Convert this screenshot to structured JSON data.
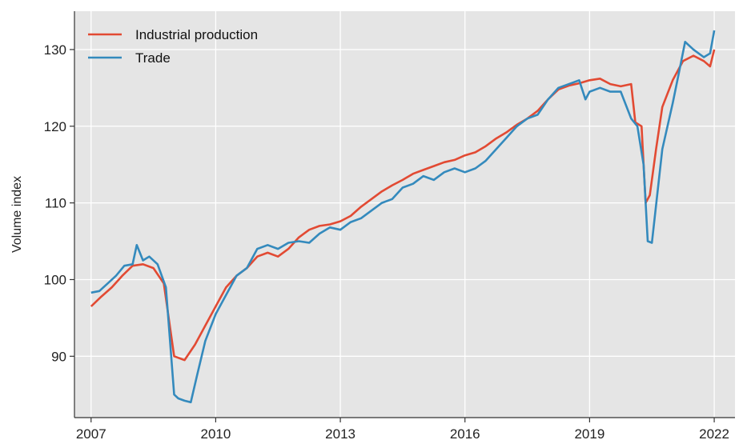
{
  "chart_data": {
    "type": "line",
    "title": "",
    "xlabel": "",
    "ylabel": "Volume index",
    "xlim": [
      2006.6,
      2022.5
    ],
    "ylim": [
      82,
      135
    ],
    "x_ticks": [
      2007,
      2010,
      2013,
      2016,
      2019,
      2022
    ],
    "y_ticks": [
      90,
      100,
      110,
      120,
      130
    ],
    "grid": true,
    "legend": "top-left",
    "series": [
      {
        "name": "Industrial production",
        "color": "#E24A33",
        "x": [
          2007.0,
          2007.25,
          2007.5,
          2007.75,
          2008.0,
          2008.25,
          2008.5,
          2008.75,
          2009.0,
          2009.25,
          2009.5,
          2009.75,
          2010.0,
          2010.25,
          2010.5,
          2010.75,
          2011.0,
          2011.25,
          2011.5,
          2011.75,
          2012.0,
          2012.25,
          2012.5,
          2012.75,
          2013.0,
          2013.25,
          2013.5,
          2013.75,
          2014.0,
          2014.25,
          2014.5,
          2014.75,
          2015.0,
          2015.25,
          2015.5,
          2015.75,
          2016.0,
          2016.25,
          2016.5,
          2016.75,
          2017.0,
          2017.25,
          2017.5,
          2017.75,
          2018.0,
          2018.25,
          2018.5,
          2018.75,
          2019.0,
          2019.25,
          2019.5,
          2019.75,
          2020.0,
          2020.1,
          2020.25,
          2020.35,
          2020.45,
          2020.6,
          2020.75,
          2021.0,
          2021.25,
          2021.5,
          2021.75,
          2021.9,
          2022.0
        ],
        "values": [
          96.5,
          97.8,
          99.0,
          100.5,
          101.8,
          102.0,
          101.5,
          99.5,
          90.0,
          89.5,
          91.5,
          94.0,
          96.5,
          99.0,
          100.5,
          101.5,
          103.0,
          103.5,
          103.0,
          104.0,
          105.5,
          106.5,
          107.0,
          107.2,
          107.6,
          108.3,
          109.5,
          110.5,
          111.5,
          112.3,
          113.0,
          113.8,
          114.3,
          114.8,
          115.3,
          115.6,
          116.2,
          116.6,
          117.4,
          118.4,
          119.2,
          120.2,
          121.0,
          122.0,
          123.5,
          124.8,
          125.3,
          125.6,
          126.0,
          126.2,
          125.5,
          125.2,
          125.5,
          120.5,
          120.0,
          110.0,
          111.0,
          117.0,
          122.5,
          126.0,
          128.5,
          129.2,
          128.5,
          127.8,
          130.0
        ]
      },
      {
        "name": "Trade",
        "color": "#348ABD",
        "x": [
          2007.0,
          2007.2,
          2007.4,
          2007.6,
          2007.8,
          2008.0,
          2008.1,
          2008.25,
          2008.4,
          2008.6,
          2008.8,
          2009.0,
          2009.1,
          2009.25,
          2009.4,
          2009.55,
          2009.75,
          2010.0,
          2010.25,
          2010.5,
          2010.75,
          2011.0,
          2011.25,
          2011.5,
          2011.75,
          2012.0,
          2012.25,
          2012.5,
          2012.75,
          2013.0,
          2013.25,
          2013.5,
          2013.75,
          2014.0,
          2014.25,
          2014.5,
          2014.75,
          2015.0,
          2015.25,
          2015.5,
          2015.75,
          2016.0,
          2016.25,
          2016.5,
          2016.75,
          2017.0,
          2017.25,
          2017.5,
          2017.75,
          2018.0,
          2018.25,
          2018.5,
          2018.75,
          2018.9,
          2019.0,
          2019.25,
          2019.5,
          2019.75,
          2020.0,
          2020.15,
          2020.3,
          2020.4,
          2020.5,
          2020.75,
          2021.0,
          2021.15,
          2021.3,
          2021.5,
          2021.75,
          2021.9,
          2022.0
        ],
        "values": [
          98.3,
          98.5,
          99.5,
          100.5,
          101.8,
          102.0,
          104.5,
          102.5,
          103.0,
          102.0,
          99.0,
          85.0,
          84.5,
          84.2,
          84.0,
          87.5,
          92.0,
          95.5,
          98.0,
          100.5,
          101.5,
          104.0,
          104.5,
          104.0,
          104.8,
          105.0,
          104.8,
          106.0,
          106.8,
          106.5,
          107.5,
          108.0,
          109.0,
          110.0,
          110.5,
          112.0,
          112.5,
          113.5,
          113.0,
          114.0,
          114.5,
          114.0,
          114.5,
          115.5,
          117.0,
          118.5,
          120.0,
          121.0,
          121.5,
          123.5,
          125.0,
          125.5,
          126.0,
          123.5,
          124.5,
          125.0,
          124.5,
          124.5,
          121.0,
          120.0,
          115.0,
          105.0,
          104.8,
          117.0,
          123.0,
          127.0,
          131.0,
          130.0,
          129.0,
          129.5,
          132.5
        ]
      }
    ]
  }
}
